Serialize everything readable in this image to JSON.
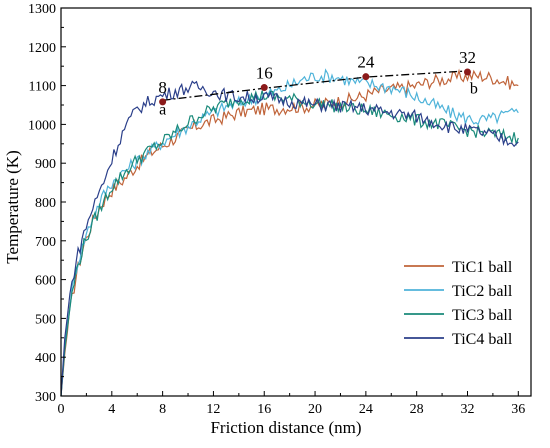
{
  "chart_data": {
    "type": "line",
    "title": "",
    "xlabel": "Friction distance (nm)",
    "ylabel": "Temperature (K)",
    "xlim": [
      0,
      37
    ],
    "ylim": [
      300,
      1300
    ],
    "xticks": [
      0,
      4,
      8,
      12,
      16,
      20,
      24,
      28,
      32,
      36
    ],
    "yticks": [
      300,
      400,
      500,
      600,
      700,
      800,
      900,
      1000,
      1100,
      1200,
      1300
    ],
    "grid": false,
    "legend_position": "bottom-right",
    "series": [
      {
        "name": "TiC1 ball",
        "color": "#c0643a",
        "points": [
          [
            0,
            300
          ],
          [
            0.3,
            410
          ],
          [
            0.7,
            520
          ],
          [
            1.2,
            610
          ],
          [
            1.8,
            690
          ],
          [
            2.5,
            750
          ],
          [
            3.2,
            795
          ],
          [
            4,
            830
          ],
          [
            5,
            860
          ],
          [
            6,
            895
          ],
          [
            7,
            925
          ],
          [
            8,
            945
          ],
          [
            9,
            965
          ],
          [
            10,
            985
          ],
          [
            11,
            1000
          ],
          [
            12,
            1010
          ],
          [
            13,
            1020
          ],
          [
            14,
            1030
          ],
          [
            15,
            1035
          ],
          [
            16,
            1040
          ],
          [
            17,
            1040
          ],
          [
            18,
            1045
          ],
          [
            19,
            1045
          ],
          [
            20,
            1050
          ],
          [
            21,
            1055
          ],
          [
            22,
            1060
          ],
          [
            23,
            1065
          ],
          [
            24,
            1075
          ],
          [
            25,
            1085
          ],
          [
            26,
            1090
          ],
          [
            27,
            1095
          ],
          [
            28,
            1100
          ],
          [
            29,
            1110
          ],
          [
            30,
            1115
          ],
          [
            31,
            1120
          ],
          [
            32,
            1125
          ],
          [
            33,
            1125
          ],
          [
            34,
            1120
          ],
          [
            35,
            1110
          ],
          [
            36,
            1100
          ]
        ]
      },
      {
        "name": "TiC2 ball",
        "color": "#4fb3d9",
        "points": [
          [
            0,
            300
          ],
          [
            0.3,
            430
          ],
          [
            0.7,
            540
          ],
          [
            1.2,
            630
          ],
          [
            1.8,
            700
          ],
          [
            2.5,
            760
          ],
          [
            3.2,
            810
          ],
          [
            4,
            850
          ],
          [
            5,
            880
          ],
          [
            6,
            905
          ],
          [
            7,
            930
          ],
          [
            8,
            955
          ],
          [
            9,
            975
          ],
          [
            10,
            995
          ],
          [
            11,
            1015
          ],
          [
            12,
            1030
          ],
          [
            13,
            1045
          ],
          [
            14,
            1055
          ],
          [
            15,
            1065
          ],
          [
            16,
            1075
          ],
          [
            17,
            1085
          ],
          [
            18,
            1100
          ],
          [
            19,
            1115
          ],
          [
            20,
            1125
          ],
          [
            21,
            1125
          ],
          [
            22,
            1120
          ],
          [
            23,
            1110
          ],
          [
            24,
            1105
          ],
          [
            25,
            1100
          ],
          [
            26,
            1095
          ],
          [
            27,
            1085
          ],
          [
            28,
            1070
          ],
          [
            29,
            1055
          ],
          [
            30,
            1040
          ],
          [
            31,
            1025
          ],
          [
            32,
            1015
          ],
          [
            33,
            1010
          ],
          [
            34,
            1015
          ],
          [
            35,
            1025
          ],
          [
            36,
            1030
          ]
        ]
      },
      {
        "name": "TiC3 ball",
        "color": "#1a8a7a",
        "points": [
          [
            0,
            300
          ],
          [
            0.3,
            420
          ],
          [
            0.7,
            530
          ],
          [
            1.2,
            620
          ],
          [
            1.8,
            690
          ],
          [
            2.5,
            745
          ],
          [
            3.2,
            790
          ],
          [
            4,
            840
          ],
          [
            5,
            875
          ],
          [
            6,
            910
          ],
          [
            7,
            935
          ],
          [
            8,
            955
          ],
          [
            9,
            980
          ],
          [
            10,
            1005
          ],
          [
            11,
            1025
          ],
          [
            12,
            1040
          ],
          [
            13,
            1055
          ],
          [
            14,
            1065
          ],
          [
            15,
            1070
          ],
          [
            16,
            1075
          ],
          [
            17,
            1070
          ],
          [
            18,
            1065
          ],
          [
            19,
            1060
          ],
          [
            20,
            1055
          ],
          [
            21,
            1050
          ],
          [
            22,
            1045
          ],
          [
            23,
            1040
          ],
          [
            24,
            1035
          ],
          [
            25,
            1030
          ],
          [
            26,
            1025
          ],
          [
            27,
            1020
          ],
          [
            28,
            1010
          ],
          [
            29,
            1005
          ],
          [
            30,
            1000
          ],
          [
            31,
            990
          ],
          [
            32,
            985
          ],
          [
            33,
            980
          ],
          [
            34,
            975
          ],
          [
            35,
            970
          ],
          [
            36,
            965
          ]
        ]
      },
      {
        "name": "TiC4 ball",
        "color": "#2b3f8a",
        "points": [
          [
            0,
            300
          ],
          [
            0.3,
            450
          ],
          [
            0.7,
            560
          ],
          [
            1.2,
            650
          ],
          [
            1.8,
            720
          ],
          [
            2.5,
            785
          ],
          [
            3.2,
            840
          ],
          [
            4,
            910
          ],
          [
            5,
            990
          ],
          [
            6,
            1040
          ],
          [
            7,
            1060
          ],
          [
            8,
            1075
          ],
          [
            9,
            1085
          ],
          [
            10,
            1095
          ],
          [
            11,
            1095
          ],
          [
            12,
            1085
          ],
          [
            13,
            1075
          ],
          [
            14,
            1070
          ],
          [
            15,
            1070
          ],
          [
            16,
            1070
          ],
          [
            17,
            1065
          ],
          [
            18,
            1060
          ],
          [
            19,
            1055
          ],
          [
            20,
            1050
          ],
          [
            21,
            1050
          ],
          [
            22,
            1045
          ],
          [
            23,
            1045
          ],
          [
            24,
            1040
          ],
          [
            25,
            1035
          ],
          [
            26,
            1030
          ],
          [
            27,
            1025
          ],
          [
            28,
            1020
          ],
          [
            29,
            1010
          ],
          [
            30,
            1000
          ],
          [
            31,
            990
          ],
          [
            32,
            985
          ],
          [
            33,
            980
          ],
          [
            34,
            970
          ],
          [
            35,
            960
          ],
          [
            36,
            955
          ]
        ]
      }
    ],
    "trend_line": {
      "color": "#000000",
      "points": [
        [
          8,
          1062
        ],
        [
          16,
          1093
        ],
        [
          24,
          1122
        ],
        [
          32,
          1138
        ]
      ]
    },
    "markers": [
      {
        "label": "8",
        "x": 8,
        "y": 1058
      },
      {
        "label": "16",
        "x": 16,
        "y": 1095
      },
      {
        "label": "24",
        "x": 24,
        "y": 1123
      },
      {
        "label": "32",
        "x": 32,
        "y": 1135
      }
    ],
    "marker_color": "#8b1a1a",
    "annotations": [
      {
        "text": "a",
        "x": 8,
        "y": 1025
      },
      {
        "text": "b",
        "x": 32.5,
        "y": 1080
      }
    ]
  }
}
